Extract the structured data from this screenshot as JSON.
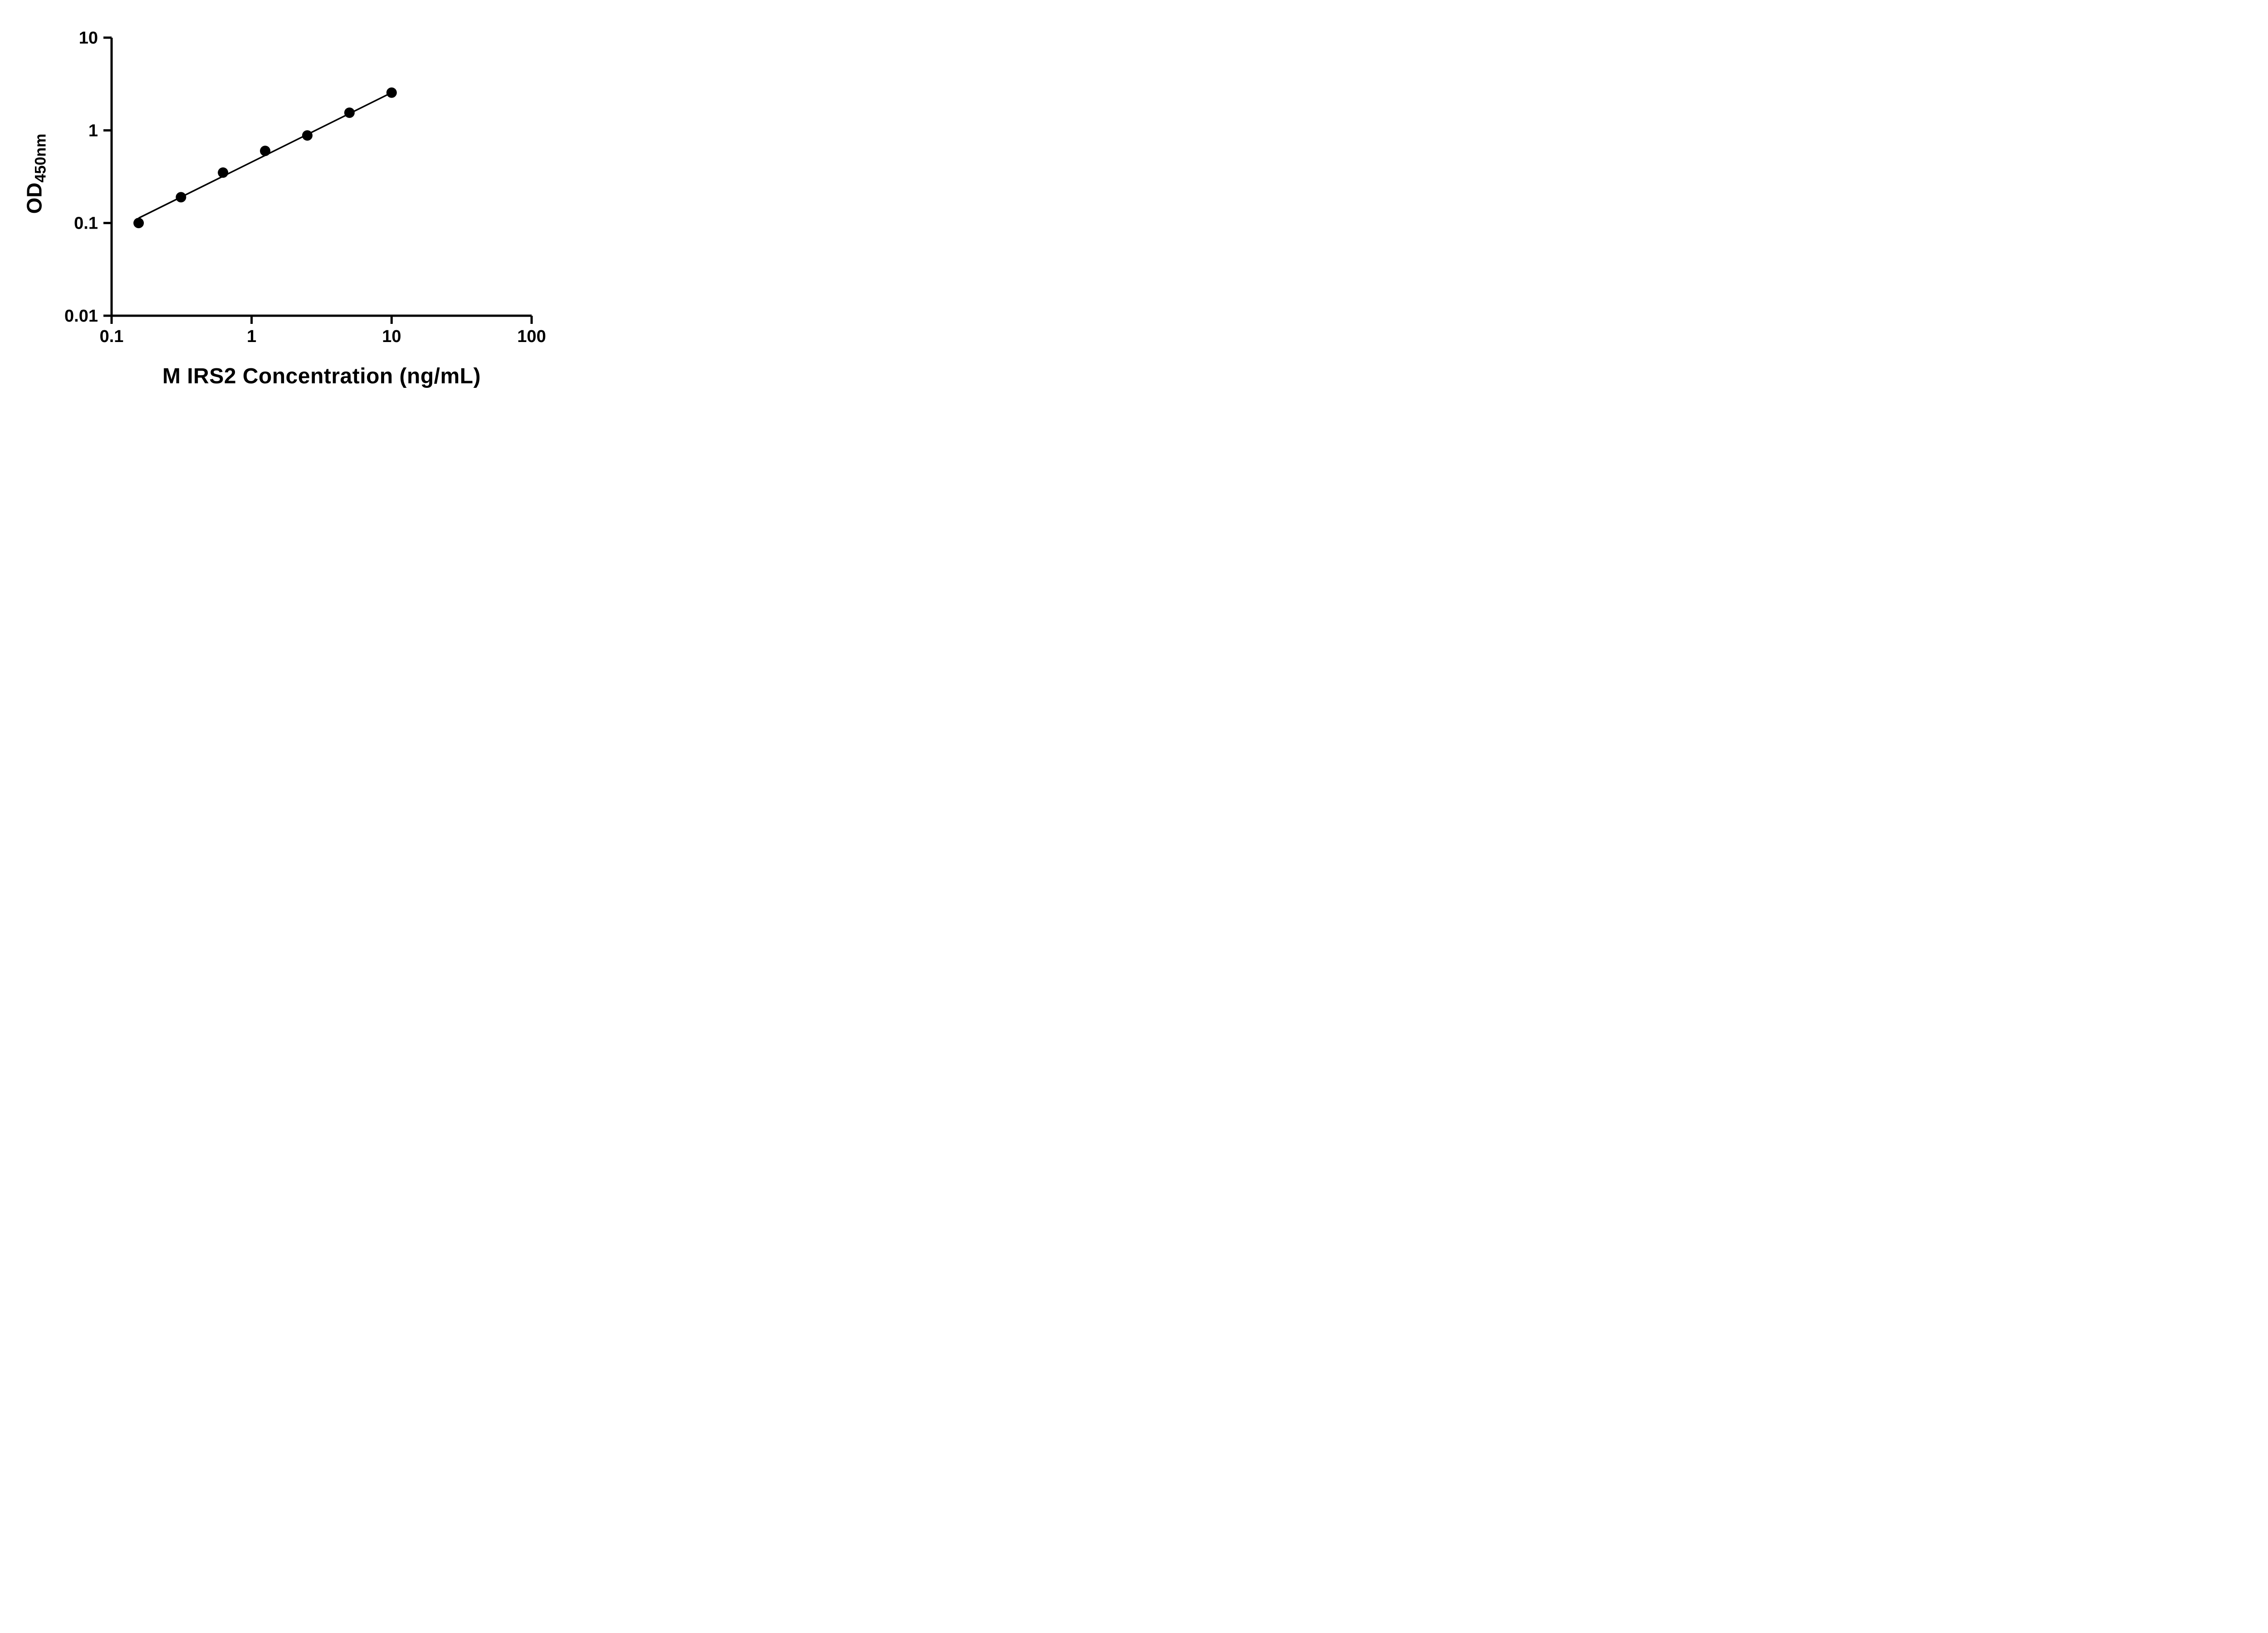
{
  "chart_data": {
    "type": "scatter",
    "title": "",
    "xlabel": "M IRS2 Concentration (ng/mL)",
    "ylabel_main": "OD",
    "ylabel_sub": "450nm",
    "x_scale": "log",
    "y_scale": "log",
    "xlim": [
      0.1,
      100
    ],
    "ylim": [
      0.01,
      10
    ],
    "grid": false,
    "legend": null,
    "x_ticks": [
      {
        "value": 0.1,
        "label": "0.1"
      },
      {
        "value": 1,
        "label": "1"
      },
      {
        "value": 10,
        "label": "10"
      },
      {
        "value": 100,
        "label": "100"
      }
    ],
    "y_ticks": [
      {
        "value": 0.01,
        "label": "0.01"
      },
      {
        "value": 0.1,
        "label": "0.1"
      },
      {
        "value": 1,
        "label": "1"
      },
      {
        "value": 10,
        "label": "10"
      }
    ],
    "points": [
      {
        "x": 0.156,
        "y": 0.1
      },
      {
        "x": 0.313,
        "y": 0.19
      },
      {
        "x": 0.625,
        "y": 0.35
      },
      {
        "x": 1.25,
        "y": 0.6
      },
      {
        "x": 2.5,
        "y": 0.88
      },
      {
        "x": 5,
        "y": 1.55
      },
      {
        "x": 10,
        "y": 2.55
      }
    ],
    "trend_line": {
      "x1": 0.156,
      "y1": 0.113,
      "x2": 10,
      "y2": 2.55
    },
    "colors": {
      "points": "#000000",
      "line": "#000000",
      "axis": "#000000",
      "background": "#ffffff"
    }
  }
}
